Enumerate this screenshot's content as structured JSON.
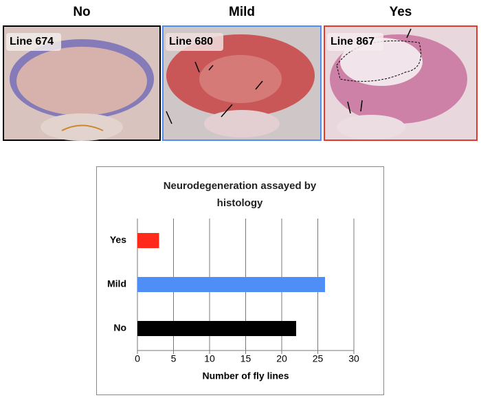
{
  "panels": [
    {
      "title": "No",
      "label": "Line 674"
    },
    {
      "title": "Mild",
      "label": "Line 680"
    },
    {
      "title": "Yes",
      "label": "Line 867"
    }
  ],
  "chart_data": {
    "type": "hbar",
    "title": "Neurodegeneration assayed by histology",
    "categories": [
      "Yes",
      "Mild",
      "No"
    ],
    "values": [
      3,
      26,
      22
    ],
    "colors": [
      "#ff2a1a",
      "#4f8ef7",
      "#000000"
    ],
    "xlabel": "Number of fly lines",
    "xlim": [
      0,
      30
    ],
    "xticks": [
      0,
      5,
      10,
      15,
      20,
      25,
      30
    ],
    "grid": true
  }
}
